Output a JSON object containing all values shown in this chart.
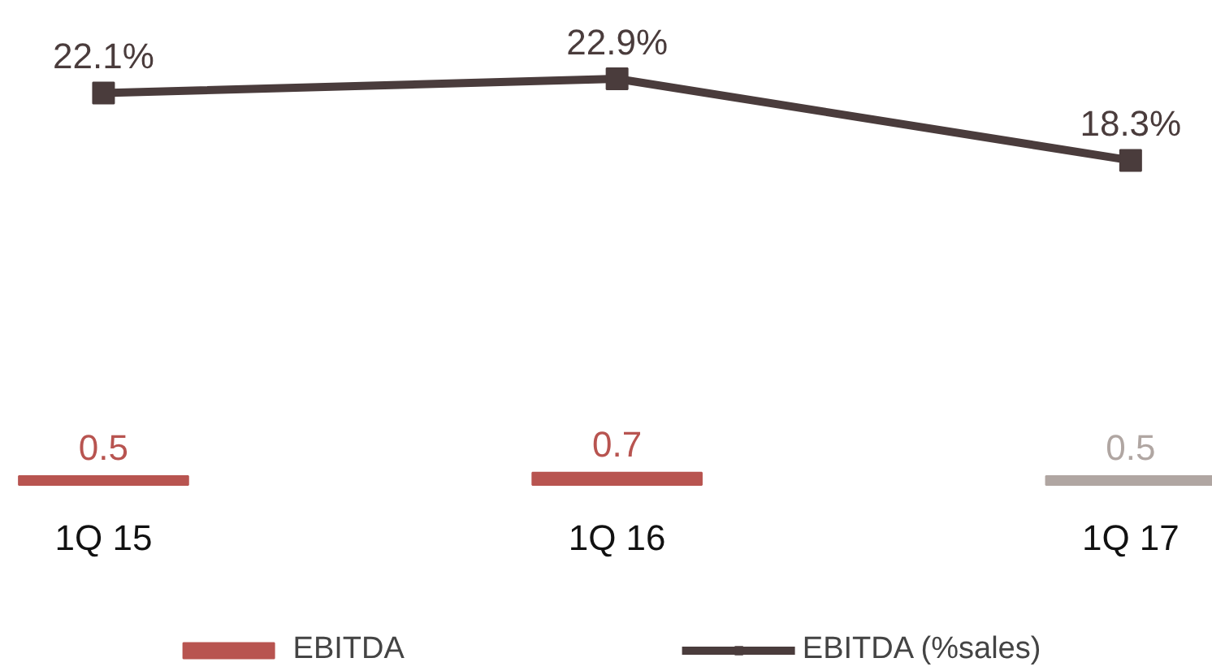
{
  "chart_data": {
    "type": "bar",
    "categories": [
      "1Q 15",
      "1Q 16",
      "1Q 17"
    ],
    "series": [
      {
        "name": "EBITDA",
        "values": [
          0.5,
          0.7,
          0.5
        ],
        "colors": [
          "#b85450",
          "#b85450",
          "#b0a6a2"
        ],
        "color": "#b85450"
      },
      {
        "name": "EBITDA (%sales)",
        "type": "line",
        "values": [
          22.1,
          22.9,
          18.3
        ],
        "value_labels": [
          "22.1%",
          "22.9%",
          "18.3%"
        ],
        "color": "#4a3c3c",
        "marker": "square"
      }
    ],
    "data_labels": true,
    "legend": "bottom",
    "grid": false,
    "tick_labels": "x"
  }
}
